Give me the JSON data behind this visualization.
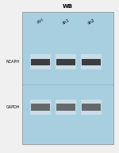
{
  "title": "WB",
  "fig_bg": "#f0f0f0",
  "lanes": 3,
  "lane_labels": [
    "ctrl",
    "sh1",
    "sh2"
  ],
  "title_fontsize": 5,
  "label_fontsize": 4,
  "box_color": "#a8cfe0",
  "band_dark_color": "#222222",
  "band_light_color": "#555555",
  "band_bg_color": "#c8dde8",
  "protein_labels": [
    "NCAPH",
    "GAPDH"
  ]
}
